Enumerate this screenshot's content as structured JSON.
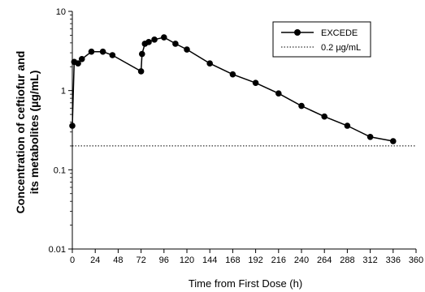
{
  "chart_data": {
    "type": "line",
    "title": "",
    "xlabel": "Time from First Dose (h)",
    "ylabel_lines": [
      "Concentration of ceftiofur and",
      "its metabolites (µg/mL)"
    ],
    "y_scale": "log",
    "xlim": [
      0,
      360
    ],
    "ylim": [
      0.01,
      10
    ],
    "x_ticks": [
      0,
      24,
      48,
      72,
      96,
      120,
      144,
      168,
      192,
      216,
      240,
      264,
      288,
      312,
      336,
      360
    ],
    "y_ticks": [
      0.01,
      0.1,
      1,
      10
    ],
    "y_tick_labels": [
      "0.01",
      "0.1",
      "1",
      "10"
    ],
    "grid": false,
    "legend_position": "top-right",
    "series": [
      {
        "name": "EXCEDE",
        "style": "solid-with-filled-circles",
        "color": "#000000",
        "x": [
          0,
          2,
          6,
          10,
          20,
          32,
          42,
          72,
          73,
          76,
          80,
          86,
          96,
          108,
          120,
          144,
          168,
          192,
          216,
          240,
          264,
          288,
          312,
          336
        ],
        "y": [
          0.36,
          2.3,
          2.2,
          2.5,
          3.1,
          3.1,
          2.8,
          1.75,
          2.9,
          3.9,
          4.1,
          4.4,
          4.7,
          3.9,
          3.3,
          2.2,
          1.6,
          1.25,
          0.92,
          0.64,
          0.47,
          0.36,
          0.26,
          0.23
        ]
      },
      {
        "name": "0.2 µg/mL",
        "style": "dotted",
        "color": "#000000",
        "x": [
          0,
          360
        ],
        "y": [
          0.2,
          0.2
        ]
      }
    ]
  }
}
